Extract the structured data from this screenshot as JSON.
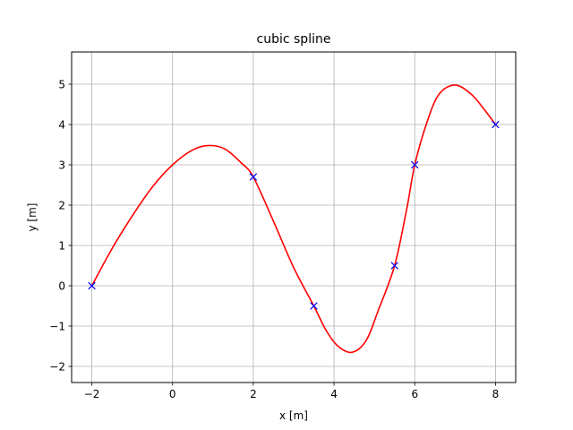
{
  "chart_data": {
    "type": "line",
    "title": "cubic spline",
    "xlabel": "x [m]",
    "ylabel": "y [m]",
    "xlim": [
      -2.5,
      8.5
    ],
    "ylim": [
      -2.4,
      5.8
    ],
    "xticks": [
      -2,
      0,
      2,
      4,
      6,
      8
    ],
    "xtick_labels": [
      "−2",
      "0",
      "2",
      "4",
      "6",
      "8"
    ],
    "yticks": [
      -2,
      -1,
      0,
      1,
      2,
      3,
      4,
      5
    ],
    "ytick_labels": [
      "−2",
      "−1",
      "0",
      "1",
      "2",
      "3",
      "4",
      "5"
    ],
    "grid": true,
    "legend": "none",
    "series": [
      {
        "style": "line",
        "color": "#ff0000",
        "x": [
          -2.0,
          -1.5,
          -1.0,
          -0.5,
          0.0,
          0.5,
          0.9,
          1.3,
          1.7,
          2.0,
          2.5,
          3.0,
          3.5,
          3.8,
          4.1,
          4.45,
          4.8,
          5.1,
          5.5,
          5.8,
          6.0,
          6.3,
          6.6,
          7.0,
          7.4,
          7.7,
          8.0
        ],
        "y": [
          0.0,
          0.92,
          1.73,
          2.45,
          3.0,
          3.37,
          3.48,
          3.39,
          3.05,
          2.7,
          1.6,
          0.45,
          -0.5,
          -1.1,
          -1.5,
          -1.65,
          -1.35,
          -0.6,
          0.5,
          1.9,
          3.0,
          4.05,
          4.75,
          4.98,
          4.75,
          4.4,
          4.0
        ]
      },
      {
        "style": "markers",
        "marker": "x",
        "color": "#0000ff",
        "x": [
          -2.0,
          2.0,
          3.5,
          5.5,
          6.0,
          8.0
        ],
        "y": [
          0.0,
          2.7,
          -0.5,
          0.5,
          3.0,
          4.0
        ]
      }
    ]
  }
}
